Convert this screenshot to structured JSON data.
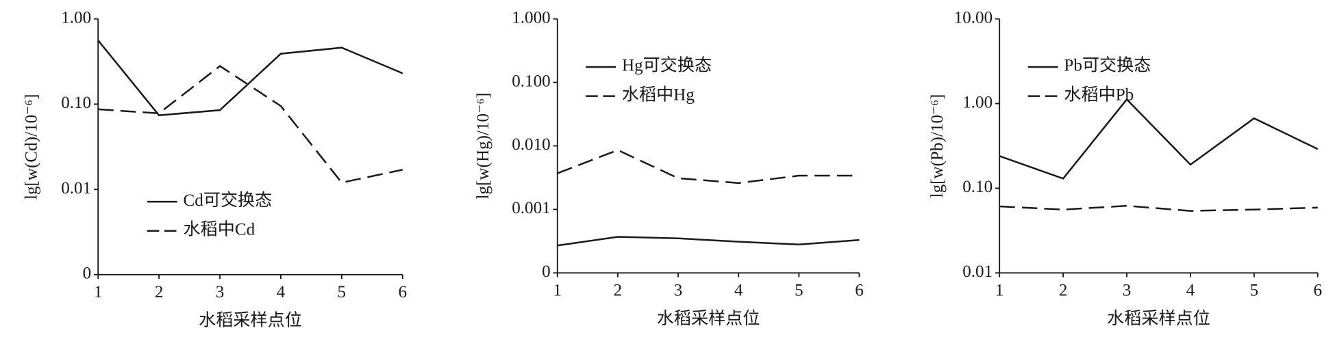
{
  "chart_data": [
    {
      "type": "line",
      "ylabel": "lg[w(Cd)/10⁻⁶]",
      "xlabel": "水稻采样点位",
      "log_y": true,
      "legend": "lower left",
      "x": [
        1,
        2,
        3,
        4,
        5,
        6
      ],
      "xlim": [
        1,
        6
      ],
      "xticks": [
        1,
        2,
        3,
        4,
        5,
        6
      ],
      "ylim": [
        0.001,
        1
      ],
      "yticks": [
        {
          "value": 0.001,
          "label": "0"
        },
        {
          "value": 0.01,
          "label": "0.01"
        },
        {
          "value": 0.1,
          "label": "0.10"
        },
        {
          "value": 1,
          "label": "1.00"
        }
      ],
      "series": [
        {
          "name": "Cd可交换态",
          "color": "#1a1a1a",
          "linestyle": "solid",
          "values": [
            0.56,
            0.074,
            0.085,
            0.39,
            0.46,
            0.23
          ]
        },
        {
          "name": "水稻中Cd",
          "color": "#1a1a1a",
          "linestyle": "dashed",
          "values": [
            0.087,
            0.078,
            0.28,
            0.095,
            0.012,
            0.017
          ]
        }
      ]
    },
    {
      "type": "line",
      "ylabel": "lg[w(Hg)/10⁻⁶]",
      "xlabel": "水稻采样点位",
      "log_y": true,
      "legend": "upper left",
      "x": [
        1,
        2,
        3,
        4,
        5,
        6
      ],
      "xlim": [
        1,
        6
      ],
      "xticks": [
        1,
        2,
        3,
        4,
        5,
        6
      ],
      "ylim": [
        0.0001,
        1
      ],
      "yticks": [
        {
          "value": 0.0001,
          "label": "0"
        },
        {
          "value": 0.001,
          "label": "0.001"
        },
        {
          "value": 0.01,
          "label": "0.010"
        },
        {
          "value": 0.1,
          "label": "0.100"
        },
        {
          "value": 1,
          "label": "1.000"
        }
      ],
      "series": [
        {
          "name": "Hg可交换态",
          "color": "#1a1a1a",
          "linestyle": "solid",
          "values": [
            0.00027,
            0.00037,
            0.00035,
            0.00031,
            0.00028,
            0.00033
          ]
        },
        {
          "name": "水稻中Hg",
          "color": "#1a1a1a",
          "linestyle": "dashed",
          "values": [
            0.0037,
            0.0086,
            0.0031,
            0.0026,
            0.0034,
            0.0034
          ]
        }
      ]
    },
    {
      "type": "line",
      "ylabel": "lg[w(Pb)/10⁻⁶]",
      "xlabel": "水稻采样点位",
      "log_y": true,
      "legend": "upper left",
      "x": [
        1,
        2,
        3,
        4,
        5,
        6
      ],
      "xlim": [
        1,
        6
      ],
      "xticks": [
        1,
        2,
        3,
        4,
        5,
        6
      ],
      "ylim": [
        0.01,
        10
      ],
      "yticks": [
        {
          "value": 0.01,
          "label": "0.01"
        },
        {
          "value": 0.1,
          "label": "0.10"
        },
        {
          "value": 1,
          "label": "1.00"
        },
        {
          "value": 10,
          "label": "10.00"
        }
      ],
      "series": [
        {
          "name": "Pb可交换态",
          "color": "#1a1a1a",
          "linestyle": "solid",
          "values": [
            0.24,
            0.13,
            1.12,
            0.19,
            0.67,
            0.29
          ]
        },
        {
          "name": "水稻中Pb",
          "color": "#1a1a1a",
          "linestyle": "dashed",
          "values": [
            0.061,
            0.056,
            0.062,
            0.054,
            0.056,
            0.059
          ]
        }
      ]
    }
  ]
}
